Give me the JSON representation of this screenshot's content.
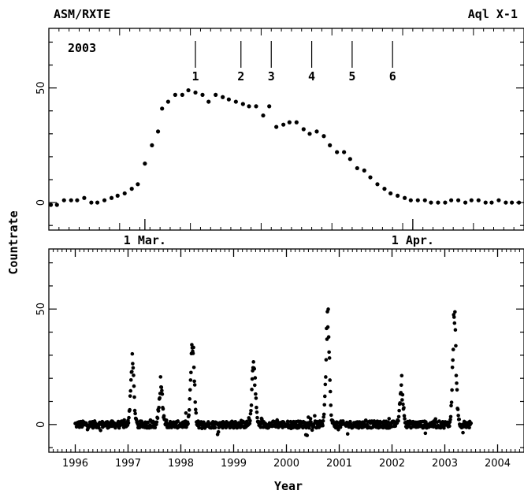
{
  "header": {
    "left": "ASM/RXTE",
    "right": "Aql X-1"
  },
  "ylabel": "Countrate",
  "chart_data": [
    {
      "type": "scatter",
      "title": "2003",
      "xlabel": "",
      "ylabel": "Countrate",
      "x_tick_labels": [
        "1 Mar.",
        "1 Apr."
      ],
      "y_ticks": [
        0,
        50
      ],
      "ylim": [
        -12,
        76
      ],
      "xlim": [
        0,
        47
      ],
      "markers": [
        {
          "label": "1",
          "x": 14.5
        },
        {
          "label": "2",
          "x": 19.0
        },
        {
          "label": "3",
          "x": 22.0
        },
        {
          "label": "4",
          "x": 26.0
        },
        {
          "label": "5",
          "x": 30.0
        },
        {
          "label": "6",
          "x": 34.0
        }
      ],
      "series": [
        {
          "x": [
            0.2,
            0.8,
            1.5,
            2.2,
            2.8,
            3.5,
            4.2,
            4.8,
            5.5,
            6.2,
            6.8,
            7.5,
            8.2,
            8.8,
            9.5,
            10.2,
            10.8,
            11.2,
            11.8,
            12.5,
            13.2,
            13.8,
            14.5,
            15.2,
            15.8,
            16.5,
            17.2,
            17.8,
            18.5,
            19.2,
            19.8,
            20.5,
            21.2,
            21.8,
            22.5,
            23.2,
            23.8,
            24.5,
            25.2,
            25.8,
            26.5,
            27.2,
            27.8,
            28.5,
            29.2,
            29.8,
            30.5,
            31.2,
            31.8,
            32.5,
            33.2,
            33.8,
            34.5,
            35.2,
            35.8,
            36.5,
            37.2,
            37.8,
            38.5,
            39.2,
            39.8,
            40.5,
            41.2,
            41.8,
            42.5,
            43.2,
            43.8,
            44.5,
            45.2,
            45.8,
            46.5
          ],
          "y": [
            -1,
            -1,
            1,
            1,
            1,
            2,
            0,
            0,
            1,
            2,
            3,
            4,
            6,
            8,
            17,
            25,
            31,
            41,
            44,
            47,
            47,
            49,
            48,
            47,
            44,
            47,
            46,
            45,
            44,
            43,
            42,
            42,
            38,
            42,
            33,
            34,
            35,
            35,
            32,
            30,
            31,
            29,
            25,
            22,
            22,
            19,
            15,
            14,
            11,
            8,
            6,
            4,
            3,
            2,
            1,
            1,
            1,
            0,
            0,
            0,
            1,
            1,
            0,
            1,
            1,
            0,
            0,
            1,
            0,
            0,
            0
          ]
        }
      ]
    },
    {
      "type": "scatter",
      "title": "",
      "xlabel": "Year",
      "ylabel": "Countrate",
      "x_tick_labels": [
        "1996",
        "1997",
        "1998",
        "1999",
        "2000",
        "2001",
        "2002",
        "2003",
        "2004"
      ],
      "xlim": [
        1995.5,
        2004.5
      ],
      "ylim": [
        -12,
        76
      ],
      "y_ticks": [
        0,
        50
      ],
      "baseline": {
        "x_start": 1996.0,
        "x_end": 2003.5,
        "value": 0,
        "jitter": 1.5
      },
      "outbursts": [
        {
          "center": 1997.08,
          "peak": 28
        },
        {
          "center": 1997.62,
          "peak": 18
        },
        {
          "center": 1998.22,
          "peak": 39
        },
        {
          "center": 1999.38,
          "peak": 28
        },
        {
          "center": 2000.78,
          "peak": 50
        },
        {
          "center": 2002.18,
          "peak": 16
        },
        {
          "center": 2003.18,
          "peak": 49
        }
      ]
    }
  ]
}
